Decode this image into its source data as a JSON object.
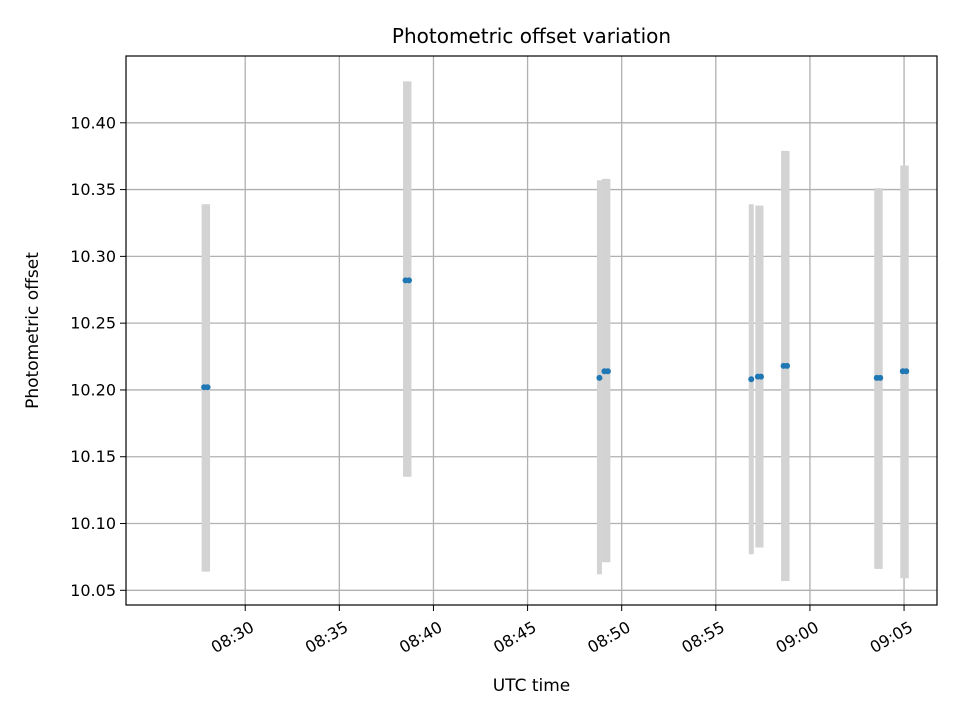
{
  "chart_data": {
    "type": "scatter",
    "title": "Photometric offset variation",
    "xlabel": "UTC time",
    "ylabel": "Photometric offset",
    "x_unit": "UTC time (HH:MM)",
    "xlim": [
      "08:23:40",
      "09:06:45"
    ],
    "ylim": [
      10.039,
      10.45
    ],
    "x_ticks": [
      "08:30",
      "08:35",
      "08:40",
      "08:45",
      "08:50",
      "08:55",
      "09:00",
      "09:05"
    ],
    "y_ticks": [
      10.05,
      10.1,
      10.15,
      10.2,
      10.25,
      10.3,
      10.35,
      10.4
    ],
    "y_tick_labels": [
      "10.05",
      "10.10",
      "10.15",
      "10.20",
      "10.25",
      "10.30",
      "10.35",
      "10.40"
    ],
    "grid": true,
    "error_bar_color": "#d3d3d3",
    "point_color": "#1f77b4",
    "series": [
      {
        "points": [
          {
            "x": "08:27:49",
            "y": 10.202,
            "yerr_low": 10.064,
            "yerr_high": 10.339
          },
          {
            "x": "08:28:00",
            "y": 10.202,
            "yerr_low": 10.064,
            "yerr_high": 10.339
          },
          {
            "x": "08:38:31",
            "y": 10.282,
            "yerr_low": 10.135,
            "yerr_high": 10.431
          },
          {
            "x": "08:38:42",
            "y": 10.282,
            "yerr_low": 10.135,
            "yerr_high": 10.431
          },
          {
            "x": "08:48:49",
            "y": 10.209,
            "yerr_low": 10.062,
            "yerr_high": 10.357
          },
          {
            "x": "08:49:05",
            "y": 10.214,
            "yerr_low": 10.071,
            "yerr_high": 10.358
          },
          {
            "x": "08:49:16",
            "y": 10.214,
            "yerr_low": 10.071,
            "yerr_high": 10.358
          },
          {
            "x": "08:56:53",
            "y": 10.208,
            "yerr_low": 10.077,
            "yerr_high": 10.339
          },
          {
            "x": "08:57:14",
            "y": 10.21,
            "yerr_low": 10.082,
            "yerr_high": 10.338
          },
          {
            "x": "08:57:24",
            "y": 10.21,
            "yerr_low": 10.082,
            "yerr_high": 10.338
          },
          {
            "x": "08:58:36",
            "y": 10.218,
            "yerr_low": 10.057,
            "yerr_high": 10.379
          },
          {
            "x": "08:58:47",
            "y": 10.218,
            "yerr_low": 10.057,
            "yerr_high": 10.379
          },
          {
            "x": "09:03:33",
            "y": 10.209,
            "yerr_low": 10.066,
            "yerr_high": 10.351
          },
          {
            "x": "09:03:44",
            "y": 10.209,
            "yerr_low": 10.066,
            "yerr_high": 10.351
          },
          {
            "x": "09:04:56",
            "y": 10.214,
            "yerr_low": 10.059,
            "yerr_high": 10.368
          },
          {
            "x": "09:05:07",
            "y": 10.214,
            "yerr_low": 10.059,
            "yerr_high": 10.368
          }
        ]
      }
    ]
  }
}
